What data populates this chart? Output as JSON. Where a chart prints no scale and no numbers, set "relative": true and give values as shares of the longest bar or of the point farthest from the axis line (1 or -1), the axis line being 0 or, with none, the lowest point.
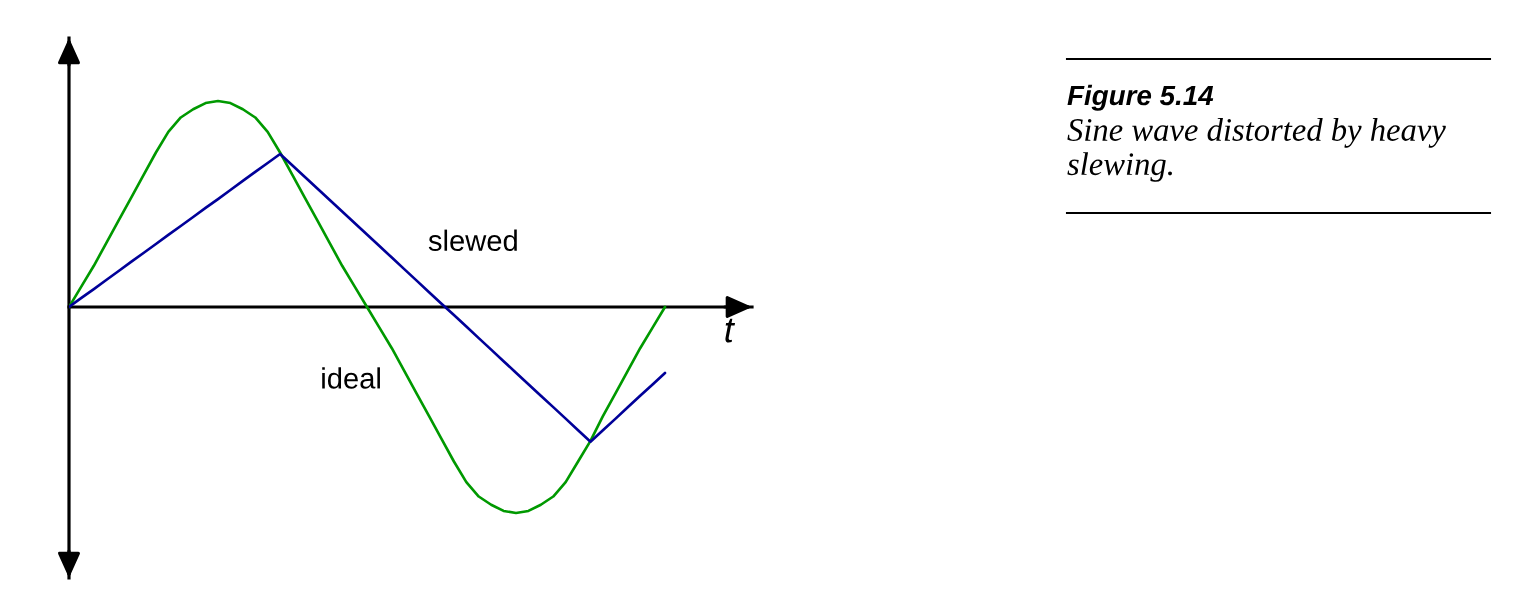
{
  "chart_data": {
    "type": "line",
    "title": "Figure 5.14",
    "subtitle": "Sine wave distorted by heavy slewing.",
    "xlabel": "t",
    "relative": true,
    "categories": [
      null,
      null,
      null,
      null,
      null,
      null,
      null,
      null,
      null,
      null,
      null,
      null,
      null,
      null,
      null,
      null,
      null,
      null,
      null,
      null,
      null,
      null,
      null,
      null,
      null,
      null,
      null,
      null,
      null,
      null,
      null,
      null,
      null,
      null,
      null,
      null,
      null,
      null,
      null,
      null,
      null,
      null,
      null,
      null,
      null,
      null,
      null,
      null,
      null
    ],
    "series": [
      {
        "name": "ideal",
        "color": "#009900",
        "values": [
          0,
          0.1,
          0.2,
          0.31,
          0.42,
          0.53,
          0.64,
          0.75,
          0.85,
          0.92,
          0.96,
          0.99,
          1,
          0.99,
          0.96,
          0.92,
          0.85,
          0.75,
          0.64,
          0.53,
          0.42,
          0.31,
          0.2,
          0.1,
          0,
          -0.1,
          -0.2,
          -0.31,
          -0.42,
          -0.53,
          -0.64,
          -0.75,
          -0.85,
          -0.92,
          -0.96,
          -0.99,
          -1,
          -0.99,
          -0.96,
          -0.92,
          -0.85,
          -0.75,
          -0.65,
          -0.53,
          -0.42,
          -0.31,
          -0.2,
          -0.1,
          0
        ]
      },
      {
        "name": "slewed",
        "color": "#000099",
        "values": [
          0,
          0.044,
          0.087,
          0.131,
          0.175,
          0.219,
          0.262,
          0.306,
          0.35,
          0.393,
          0.437,
          0.481,
          0.524,
          0.568,
          0.612,
          0.656,
          0.699,
          0.743,
          0.687,
          0.631,
          0.575,
          0.519,
          0.464,
          0.408,
          0.352,
          0.296,
          0.24,
          0.184,
          0.128,
          0.072,
          0.016,
          -0.039,
          -0.095,
          -0.151,
          -0.207,
          -0.263,
          -0.319,
          -0.375,
          -0.431,
          -0.486,
          -0.542,
          -0.598,
          -0.654,
          -0.598,
          -0.543,
          -0.487,
          -0.431,
          -0.376,
          -0.32
        ]
      }
    ],
    "marker": "none",
    "line_style": "solid"
  }
}
